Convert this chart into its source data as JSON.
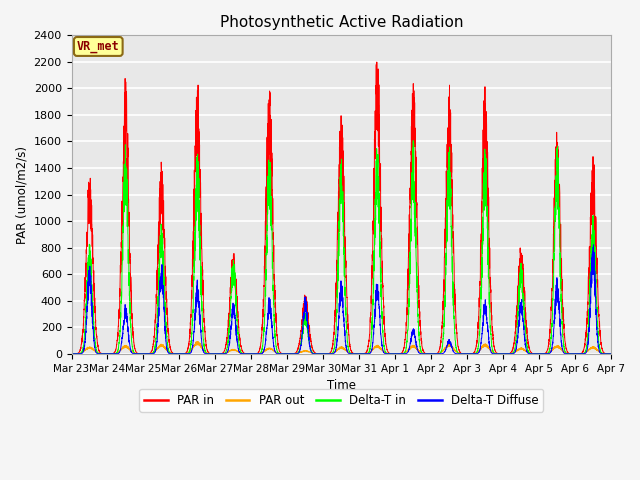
{
  "title": "Photosynthetic Active Radiation",
  "ylabel": "PAR (umol/m2/s)",
  "xlabel": "Time",
  "annotation": "VR_met",
  "ylim": [
    0,
    2400
  ],
  "background_color": "#f5f5f5",
  "plot_bg_color": "#e8e8e8",
  "grid_color": "white",
  "legend": [
    "PAR in",
    "PAR out",
    "Delta-T in",
    "Delta-T Diffuse"
  ],
  "colors": [
    "red",
    "orange",
    "lime",
    "blue"
  ],
  "n_days": 15,
  "yticks": [
    0,
    200,
    400,
    600,
    800,
    1000,
    1200,
    1400,
    1600,
    1800,
    2000,
    2200,
    2400
  ],
  "tick_labels": [
    "Mar 23",
    "Mar 24",
    "Mar 25",
    "Mar 26",
    "Mar 27",
    "Mar 28",
    "Mar 29",
    "Mar 30",
    "Mar 31",
    "Apr 1",
    "Apr 2",
    "Apr 3",
    "Apr 4",
    "Apr 5",
    "Apr 6",
    "Apr 7"
  ]
}
